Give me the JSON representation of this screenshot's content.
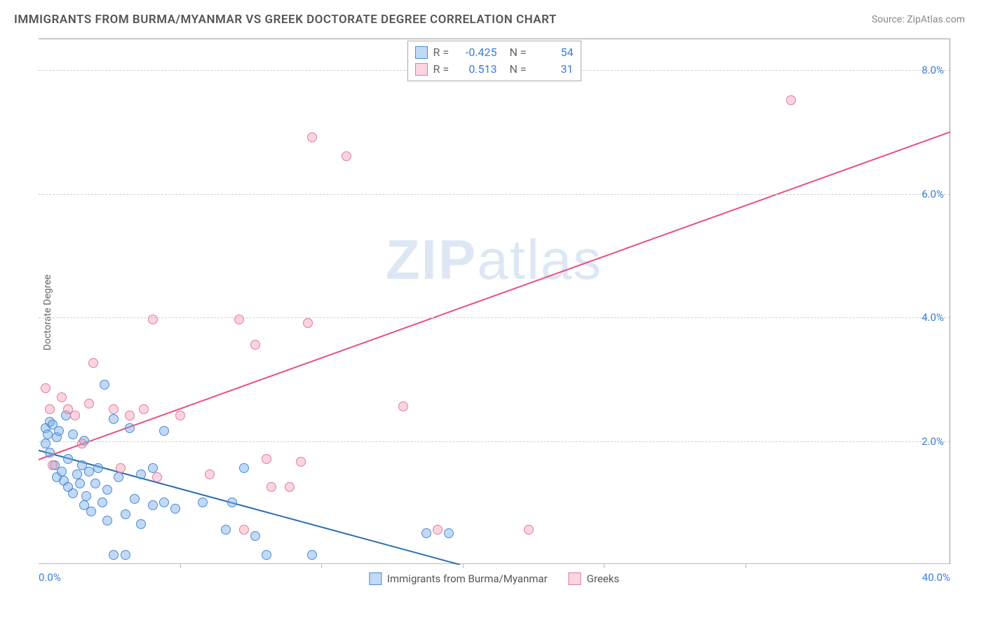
{
  "title": "IMMIGRANTS FROM BURMA/MYANMAR VS GREEK DOCTORATE DEGREE CORRELATION CHART",
  "source_label": "Source: ZipAtlas.com",
  "watermark": {
    "bold": "ZIP",
    "rest": "atlas"
  },
  "y_axis_label": "Doctorate Degree",
  "chart": {
    "type": "scatter",
    "background_color": "#ffffff",
    "grid_color": "#d0d0d0",
    "axis_color": "#999999",
    "tick_label_color": "#3b7dd8",
    "xlim": [
      0,
      40
    ],
    "ylim": [
      0,
      8.5
    ],
    "x_ticks": [
      0,
      40
    ],
    "x_tick_labels": [
      "0.0%",
      "40.0%"
    ],
    "x_minor_ticks": [
      6.2,
      12.4,
      18.6,
      24.8,
      31.0
    ],
    "y_ticks": [
      2,
      4,
      6,
      8
    ],
    "y_tick_labels": [
      "2.0%",
      "4.0%",
      "6.0%",
      "8.0%"
    ],
    "series": [
      {
        "name": "Immigrants from Burma/Myanmar",
        "fill_color": "rgba(120, 170, 230, 0.45)",
        "stroke_color": "#4a8bd6",
        "r_value": "-0.425",
        "n_value": "54",
        "trend": {
          "x1": 0,
          "y1": 1.85,
          "x2": 18.5,
          "y2": 0,
          "color": "#2b6cb0",
          "width": 2
        },
        "points": [
          [
            0.3,
            2.2
          ],
          [
            0.3,
            1.95
          ],
          [
            0.4,
            2.1
          ],
          [
            0.5,
            2.3
          ],
          [
            0.5,
            1.8
          ],
          [
            0.6,
            2.25
          ],
          [
            0.7,
            1.6
          ],
          [
            0.8,
            2.05
          ],
          [
            0.8,
            1.4
          ],
          [
            0.9,
            2.15
          ],
          [
            1.0,
            1.5
          ],
          [
            1.1,
            1.35
          ],
          [
            1.2,
            2.4
          ],
          [
            1.3,
            1.7
          ],
          [
            1.3,
            1.25
          ],
          [
            1.5,
            1.15
          ],
          [
            1.5,
            2.1
          ],
          [
            1.7,
            1.45
          ],
          [
            1.8,
            1.3
          ],
          [
            1.9,
            1.6
          ],
          [
            2.0,
            0.95
          ],
          [
            2.0,
            2.0
          ],
          [
            2.1,
            1.1
          ],
          [
            2.2,
            1.5
          ],
          [
            2.3,
            0.85
          ],
          [
            2.5,
            1.3
          ],
          [
            2.6,
            1.55
          ],
          [
            2.8,
            1.0
          ],
          [
            2.9,
            2.9
          ],
          [
            3.0,
            1.2
          ],
          [
            3.0,
            0.7
          ],
          [
            3.3,
            2.35
          ],
          [
            3.3,
            0.15
          ],
          [
            3.5,
            1.4
          ],
          [
            3.8,
            0.8
          ],
          [
            3.8,
            0.15
          ],
          [
            4.0,
            2.2
          ],
          [
            4.2,
            1.05
          ],
          [
            4.5,
            1.45
          ],
          [
            4.5,
            0.65
          ],
          [
            5.0,
            1.55
          ],
          [
            5.0,
            0.95
          ],
          [
            5.5,
            1.0
          ],
          [
            5.5,
            2.15
          ],
          [
            6.0,
            0.9
          ],
          [
            7.2,
            1.0
          ],
          [
            8.2,
            0.55
          ],
          [
            8.5,
            1.0
          ],
          [
            9.0,
            1.55
          ],
          [
            9.5,
            0.45
          ],
          [
            10.0,
            0.15
          ],
          [
            12.0,
            0.15
          ],
          [
            17.0,
            0.5
          ],
          [
            18.0,
            0.5
          ]
        ]
      },
      {
        "name": "Greeks",
        "fill_color": "rgba(240, 150, 175, 0.40)",
        "stroke_color": "#e67a9a",
        "r_value": "0.513",
        "n_value": "31",
        "trend": {
          "x1": 0,
          "y1": 1.7,
          "x2": 40,
          "y2": 7.0,
          "color": "#e94f80",
          "width": 2
        },
        "points": [
          [
            0.3,
            2.85
          ],
          [
            0.5,
            2.5
          ],
          [
            0.6,
            1.6
          ],
          [
            1.0,
            2.7
          ],
          [
            1.3,
            2.5
          ],
          [
            1.6,
            2.4
          ],
          [
            1.9,
            1.95
          ],
          [
            2.2,
            2.6
          ],
          [
            2.4,
            3.25
          ],
          [
            3.3,
            2.5
          ],
          [
            3.6,
            1.55
          ],
          [
            4.0,
            2.4
          ],
          [
            4.6,
            2.5
          ],
          [
            5.0,
            3.95
          ],
          [
            5.2,
            1.4
          ],
          [
            6.2,
            2.4
          ],
          [
            7.5,
            1.45
          ],
          [
            8.8,
            3.95
          ],
          [
            9.0,
            0.55
          ],
          [
            9.5,
            3.55
          ],
          [
            10.0,
            1.7
          ],
          [
            10.2,
            1.25
          ],
          [
            11.5,
            1.65
          ],
          [
            11.8,
            3.9
          ],
          [
            13.5,
            6.6
          ],
          [
            12.0,
            6.9
          ],
          [
            16.0,
            2.55
          ],
          [
            17.5,
            0.55
          ],
          [
            21.5,
            0.55
          ],
          [
            33.0,
            7.5
          ],
          [
            11.0,
            1.25
          ]
        ]
      }
    ]
  },
  "legend_top": {
    "r_label": "R =",
    "n_label": "N ="
  },
  "legend_bottom": [
    {
      "label": "Immigrants from Burma/Myanmar"
    },
    {
      "label": "Greeks"
    }
  ]
}
